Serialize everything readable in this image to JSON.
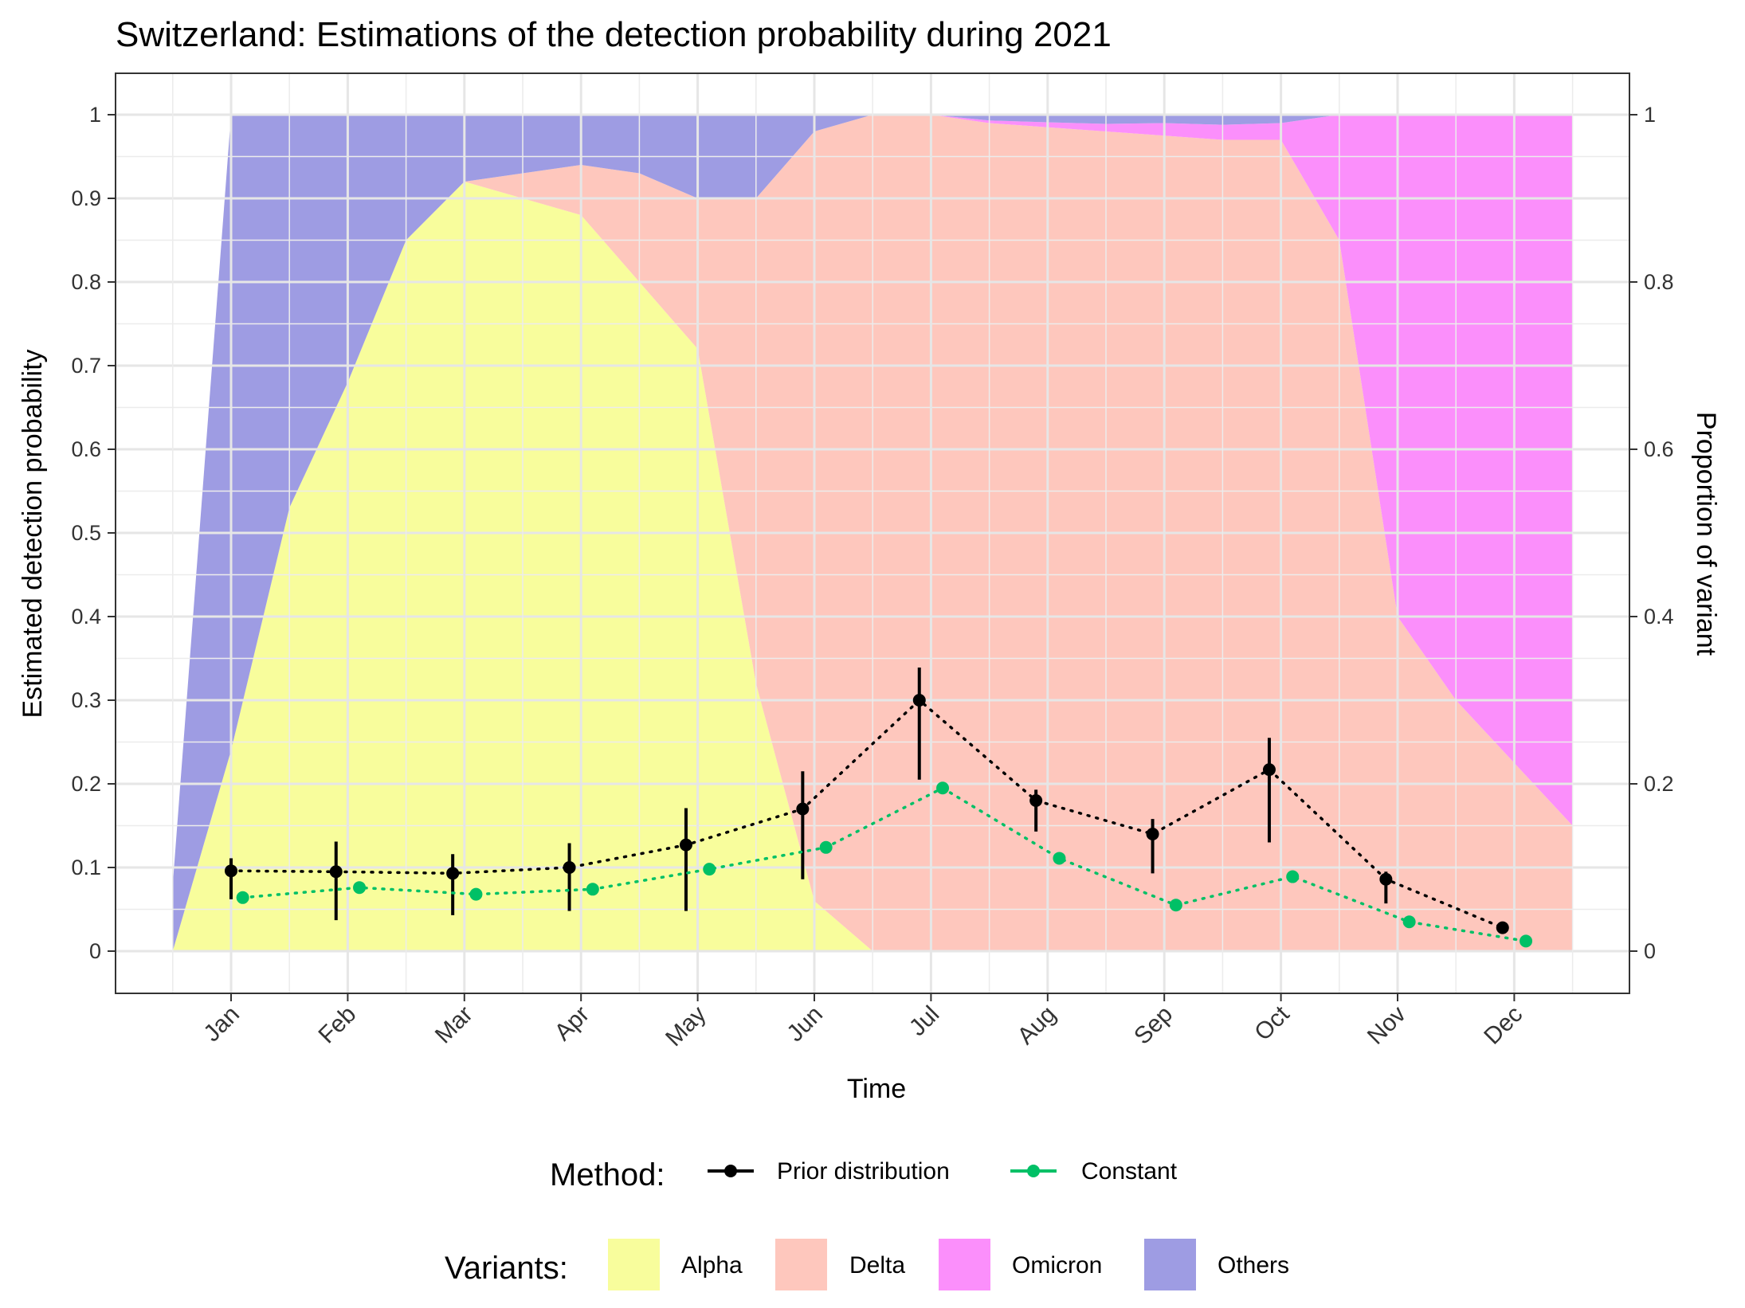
{
  "chart_data": {
    "type": "line",
    "title": "Switzerland: Estimations of the detection probability during 2021",
    "xlabel": "Time",
    "ylabel": "Estimated detection probability",
    "ylabel_right": "Proportion of variant",
    "ylim": [
      -0.05,
      1.05
    ],
    "grid": true,
    "x_ticks": [
      "Jan",
      "Feb",
      "Mar",
      "Apr",
      "May",
      "Jun",
      "Jul",
      "Aug",
      "Sep",
      "Oct",
      "Nov",
      "Dec"
    ],
    "y_ticks": [
      "0",
      "0.1",
      "0.2",
      "0.3",
      "0.4",
      "0.5",
      "0.6",
      "0.7",
      "0.8",
      "0.9",
      "1"
    ],
    "y_ticks_right": [
      "0",
      "0.2",
      "0.4",
      "0.6",
      "0.8",
      "1"
    ],
    "legend_placement": "bottom",
    "method_legend": {
      "title": "Method:",
      "items": [
        {
          "name": "Prior distribution",
          "color": "#000000"
        },
        {
          "name": "Constant",
          "color": "#00c066"
        }
      ]
    },
    "variant_legend": {
      "title": "Variants:",
      "items": [
        {
          "name": "Alpha",
          "color": "#f8fd9c"
        },
        {
          "name": "Delta",
          "color": "#fec7bd"
        },
        {
          "name": "Omicron",
          "color": "#fb8ffb"
        },
        {
          "name": "Others",
          "color": "#9e9ce3"
        }
      ]
    },
    "variant_proportions": {
      "x_month": [
        0.5,
        1.0,
        1.5,
        2.0,
        2.5,
        3.0,
        3.5,
        4.0,
        4.5,
        5.0,
        5.5,
        6.0,
        6.5,
        7.0,
        7.5,
        8.0,
        8.5,
        9.0,
        9.5,
        10.0,
        10.5,
        11.0,
        11.5,
        12.5
      ],
      "Alpha": [
        0.0,
        0.24,
        0.53,
        0.68,
        0.85,
        0.92,
        0.9,
        0.88,
        0.8,
        0.72,
        0.32,
        0.06,
        0.0,
        0,
        0,
        0,
        0,
        0,
        0,
        0,
        0,
        0,
        0,
        0
      ],
      "Delta": [
        0.0,
        0.0,
        0.0,
        0.0,
        0.0,
        0.0,
        0.03,
        0.06,
        0.13,
        0.18,
        0.58,
        0.92,
        1.0,
        1.0,
        0.99,
        0.985,
        0.98,
        0.975,
        0.97,
        0.97,
        0.85,
        0.4,
        0.3,
        0.15
      ],
      "Omicron": [
        0,
        0,
        0,
        0,
        0,
        0,
        0,
        0,
        0,
        0,
        0,
        0,
        0,
        0,
        0.003,
        0.006,
        0.009,
        0.015,
        0.018,
        0.02,
        0.15,
        0.6,
        0.7,
        0.85
      ],
      "Others": [
        0.08,
        0.76,
        0.47,
        0.32,
        0.15,
        0.08,
        0.07,
        0.06,
        0.07,
        0.1,
        0.1,
        0.02,
        0.0,
        0.0,
        0.007,
        0.009,
        0.011,
        0.01,
        0.012,
        0.01,
        0.0,
        0.0,
        0.0,
        0.0
      ]
    },
    "series": [
      {
        "name": "Prior distribution",
        "color": "#000000",
        "x": [
          "Jan",
          "Feb",
          "Mar",
          "Apr",
          "May",
          "Jun",
          "Jul",
          "Aug",
          "Sep",
          "Oct",
          "Nov",
          "Dec"
        ],
        "x_month": [
          1.0,
          1.9,
          2.9,
          3.9,
          4.9,
          5.9,
          6.9,
          7.9,
          8.9,
          9.9,
          10.9,
          11.9
        ],
        "values": [
          0.096,
          0.095,
          0.093,
          0.1,
          0.127,
          0.17,
          0.3,
          0.18,
          0.14,
          0.217,
          0.086,
          0.028
        ],
        "lower": [
          0.062,
          0.037,
          0.043,
          0.048,
          0.048,
          0.086,
          0.205,
          0.143,
          0.093,
          0.13,
          0.057,
          0.021
        ],
        "upper": [
          0.111,
          0.131,
          0.116,
          0.129,
          0.171,
          0.215,
          0.339,
          0.193,
          0.158,
          0.255,
          0.095,
          0.032
        ]
      },
      {
        "name": "Constant",
        "color": "#00c066",
        "x": [
          "Jan",
          "Feb",
          "Mar",
          "Apr",
          "May",
          "Jun",
          "Jul",
          "Aug",
          "Sep",
          "Oct",
          "Nov",
          "Dec"
        ],
        "x_month": [
          1.1,
          2.1,
          3.1,
          4.1,
          5.1,
          6.1,
          7.1,
          8.1,
          9.1,
          10.1,
          11.1,
          12.1
        ],
        "values": [
          0.064,
          0.076,
          0.068,
          0.074,
          0.098,
          0.124,
          0.195,
          0.111,
          0.055,
          0.089,
          0.035,
          0.012
        ]
      }
    ]
  }
}
